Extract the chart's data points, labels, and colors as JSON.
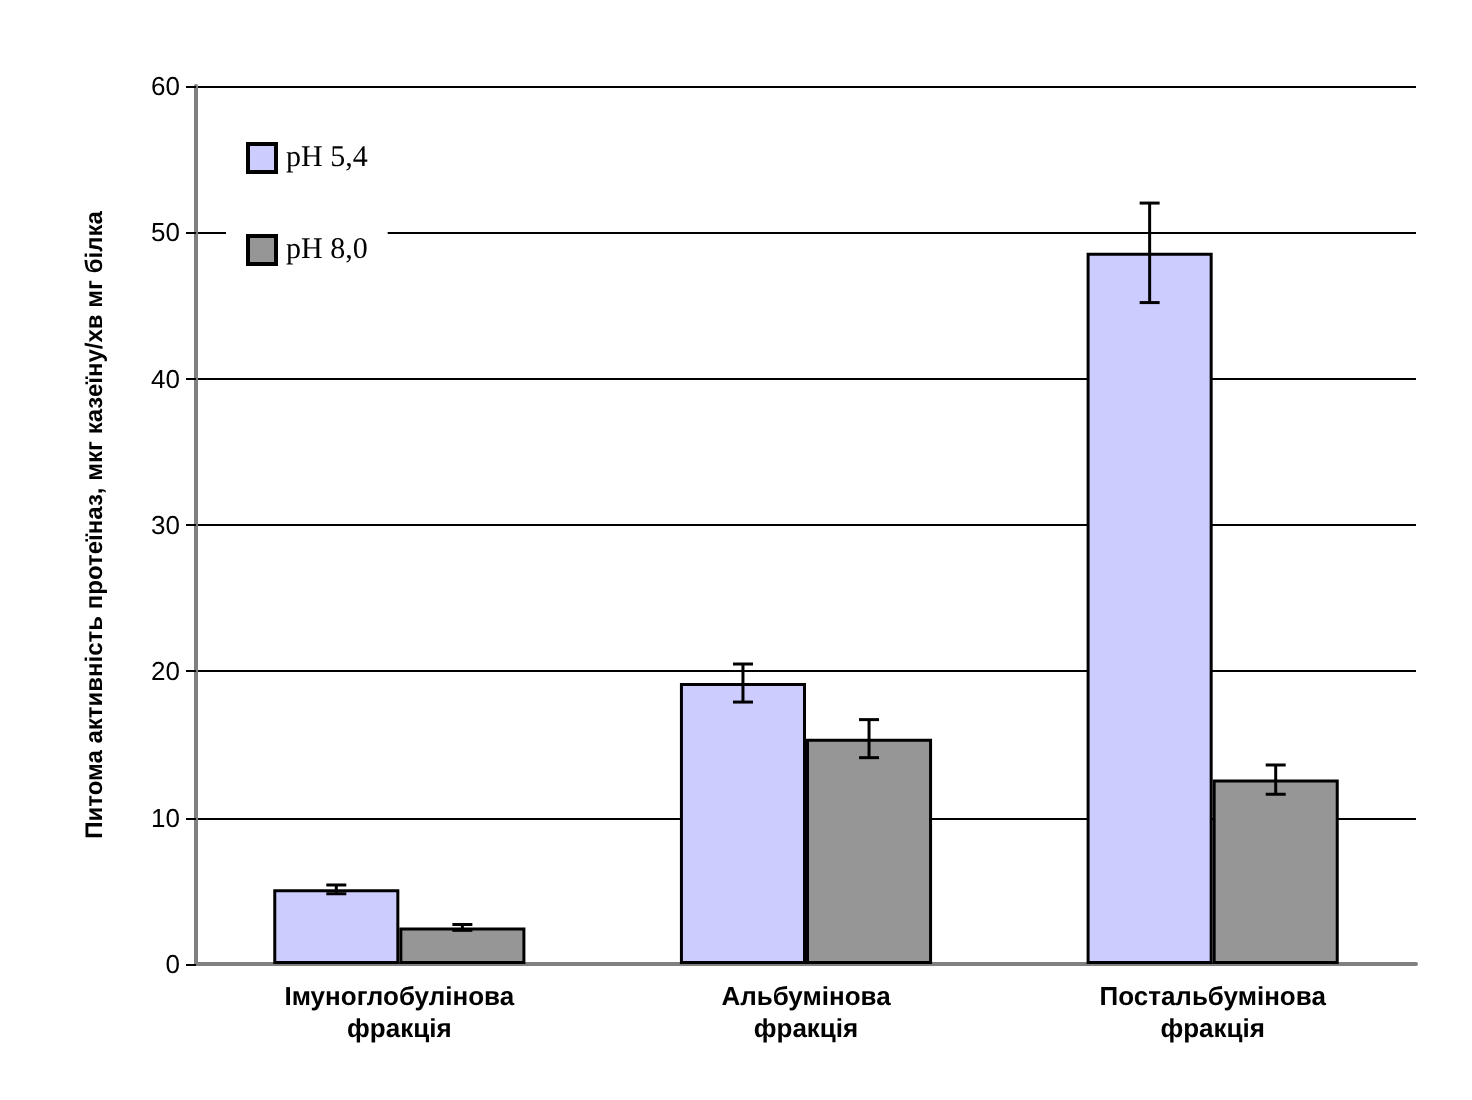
{
  "chart_data": {
    "type": "bar",
    "ylabel": "Питома активність протеїназ, мкг казеїну/хв мг білка",
    "categories": [
      "Імуноглобулінова\nфракція",
      "Альбумінова\nфракція",
      "Постальбумінова\nфракція"
    ],
    "series": [
      {
        "name": "pH 5,4",
        "color": "#ccccff",
        "values": [
          5.1,
          19.2,
          48.6
        ],
        "errors": [
          0.3,
          1.3,
          3.4
        ]
      },
      {
        "name": "pH 8,0",
        "color": "#969696",
        "values": [
          2.5,
          15.4,
          12.6
        ],
        "errors": [
          0.2,
          1.3,
          1.0
        ]
      }
    ],
    "ylim": [
      0,
      60
    ],
    "yticks": [
      0,
      10,
      20,
      30,
      40,
      50,
      60
    ],
    "grid": "y",
    "legend": "top left"
  }
}
